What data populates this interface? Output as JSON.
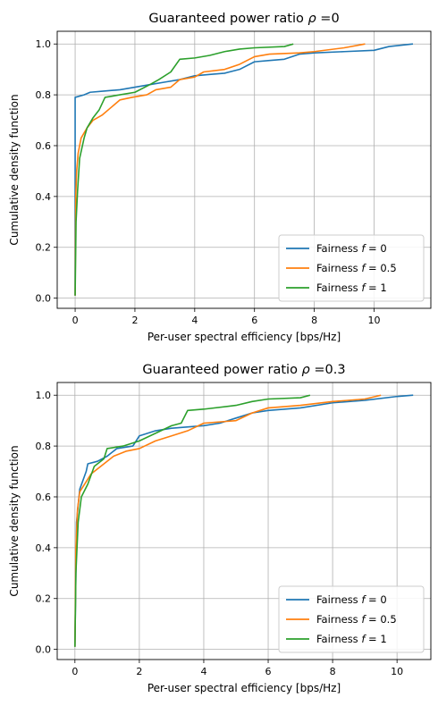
{
  "chart_data": [
    {
      "type": "line",
      "title": "Guaranteed power ratio ρ =0",
      "xlabel": "Per-user spectral efficiency [bps/Hz]",
      "ylabel": "Cumulative density function",
      "xlim": [
        -0.6,
        11.9
      ],
      "ylim": [
        -0.04,
        1.05
      ],
      "xticks": [
        0,
        2,
        4,
        6,
        8,
        10
      ],
      "yticks": [
        0.0,
        0.2,
        0.4,
        0.6,
        0.8,
        1.0
      ],
      "grid": true,
      "legend_position": "lower right",
      "series": [
        {
          "name": "Fairness f = 0",
          "color": "#1f77b4",
          "points": [
            [
              0,
              0.01
            ],
            [
              0,
              0.79
            ],
            [
              0.3,
              0.8
            ],
            [
              0.5,
              0.81
            ],
            [
              1.0,
              0.815
            ],
            [
              1.5,
              0.82
            ],
            [
              2.0,
              0.83
            ],
            [
              2.5,
              0.84
            ],
            [
              3.0,
              0.85
            ],
            [
              3.5,
              0.86
            ],
            [
              4.0,
              0.875
            ],
            [
              4.5,
              0.88
            ],
            [
              5.0,
              0.885
            ],
            [
              5.5,
              0.9
            ],
            [
              6.0,
              0.93
            ],
            [
              6.5,
              0.935
            ],
            [
              7.0,
              0.94
            ],
            [
              7.5,
              0.96
            ],
            [
              8.0,
              0.965
            ],
            [
              9.0,
              0.97
            ],
            [
              10.0,
              0.975
            ],
            [
              10.5,
              0.99
            ],
            [
              11.3,
              1.0
            ]
          ]
        },
        {
          "name": "Fairness f = 0.5",
          "color": "#ff7f0e",
          "points": [
            [
              0,
              0.01
            ],
            [
              0.02,
              0.4
            ],
            [
              0.05,
              0.5
            ],
            [
              0.1,
              0.57
            ],
            [
              0.2,
              0.63
            ],
            [
              0.4,
              0.67
            ],
            [
              0.6,
              0.7
            ],
            [
              0.9,
              0.72
            ],
            [
              1.2,
              0.75
            ],
            [
              1.5,
              0.78
            ],
            [
              1.9,
              0.79
            ],
            [
              2.4,
              0.8
            ],
            [
              2.7,
              0.82
            ],
            [
              3.2,
              0.83
            ],
            [
              3.5,
              0.86
            ],
            [
              4.0,
              0.87
            ],
            [
              4.3,
              0.89
            ],
            [
              5.0,
              0.9
            ],
            [
              5.5,
              0.92
            ],
            [
              6.0,
              0.95
            ],
            [
              6.5,
              0.96
            ],
            [
              7.5,
              0.965
            ],
            [
              8.0,
              0.97
            ],
            [
              9.0,
              0.985
            ],
            [
              9.7,
              1.0
            ]
          ]
        },
        {
          "name": "Fairness f = 1",
          "color": "#2ca02c",
          "points": [
            [
              0,
              0.01
            ],
            [
              0.03,
              0.3
            ],
            [
              0.08,
              0.42
            ],
            [
              0.15,
              0.55
            ],
            [
              0.3,
              0.63
            ],
            [
              0.4,
              0.67
            ],
            [
              0.6,
              0.71
            ],
            [
              0.8,
              0.74
            ],
            [
              1.0,
              0.79
            ],
            [
              1.5,
              0.8
            ],
            [
              2.0,
              0.81
            ],
            [
              2.5,
              0.84
            ],
            [
              2.8,
              0.86
            ],
            [
              3.2,
              0.89
            ],
            [
              3.5,
              0.94
            ],
            [
              4.0,
              0.945
            ],
            [
              4.5,
              0.955
            ],
            [
              5.0,
              0.97
            ],
            [
              5.5,
              0.98
            ],
            [
              6.0,
              0.985
            ],
            [
              7.0,
              0.99
            ],
            [
              7.3,
              1.0
            ]
          ]
        }
      ]
    },
    {
      "type": "line",
      "title": "Guaranteed power ratio ρ =0.3",
      "xlabel": "Per-user spectral efficiency [bps/Hz]",
      "ylabel": "Cumulative density function",
      "xlim": [
        -0.55,
        11.05
      ],
      "ylim": [
        -0.04,
        1.05
      ],
      "xticks": [
        0,
        2,
        4,
        6,
        8,
        10
      ],
      "yticks": [
        0.0,
        0.2,
        0.4,
        0.6,
        0.8,
        1.0
      ],
      "grid": true,
      "legend_position": "lower right",
      "series": [
        {
          "name": "Fairness f = 0",
          "color": "#1f77b4",
          "points": [
            [
              0,
              0.01
            ],
            [
              0.05,
              0.5
            ],
            [
              0.15,
              0.63
            ],
            [
              0.35,
              0.7
            ],
            [
              0.4,
              0.73
            ],
            [
              0.7,
              0.74
            ],
            [
              1.0,
              0.76
            ],
            [
              1.3,
              0.79
            ],
            [
              1.8,
              0.8
            ],
            [
              2.0,
              0.84
            ],
            [
              2.5,
              0.86
            ],
            [
              3.0,
              0.87
            ],
            [
              4.0,
              0.88
            ],
            [
              4.5,
              0.89
            ],
            [
              5.0,
              0.91
            ],
            [
              5.5,
              0.93
            ],
            [
              6.0,
              0.94
            ],
            [
              7.0,
              0.95
            ],
            [
              8.0,
              0.97
            ],
            [
              9.0,
              0.98
            ],
            [
              10.0,
              0.995
            ],
            [
              10.5,
              1.0
            ]
          ]
        },
        {
          "name": "Fairness f = 0.5",
          "color": "#ff7f0e",
          "points": [
            [
              0,
              0.01
            ],
            [
              0.03,
              0.4
            ],
            [
              0.08,
              0.55
            ],
            [
              0.15,
              0.62
            ],
            [
              0.3,
              0.65
            ],
            [
              0.5,
              0.69
            ],
            [
              0.8,
              0.72
            ],
            [
              1.2,
              0.76
            ],
            [
              1.6,
              0.78
            ],
            [
              2.0,
              0.79
            ],
            [
              2.5,
              0.82
            ],
            [
              3.0,
              0.84
            ],
            [
              3.5,
              0.86
            ],
            [
              4.0,
              0.89
            ],
            [
              5.0,
              0.9
            ],
            [
              5.5,
              0.93
            ],
            [
              6.0,
              0.95
            ],
            [
              7.0,
              0.96
            ],
            [
              8.0,
              0.975
            ],
            [
              9.0,
              0.985
            ],
            [
              9.5,
              1.0
            ]
          ]
        },
        {
          "name": "Fairness f = 1",
          "color": "#2ca02c",
          "points": [
            [
              0,
              0.01
            ],
            [
              0.03,
              0.3
            ],
            [
              0.1,
              0.5
            ],
            [
              0.2,
              0.6
            ],
            [
              0.4,
              0.65
            ],
            [
              0.6,
              0.72
            ],
            [
              0.9,
              0.75
            ],
            [
              1.0,
              0.79
            ],
            [
              1.5,
              0.8
            ],
            [
              2.0,
              0.82
            ],
            [
              2.5,
              0.85
            ],
            [
              3.0,
              0.88
            ],
            [
              3.3,
              0.89
            ],
            [
              3.5,
              0.94
            ],
            [
              4.0,
              0.945
            ],
            [
              5.0,
              0.96
            ],
            [
              5.5,
              0.975
            ],
            [
              6.0,
              0.985
            ],
            [
              7.0,
              0.99
            ],
            [
              7.3,
              1.0
            ]
          ]
        }
      ]
    }
  ]
}
